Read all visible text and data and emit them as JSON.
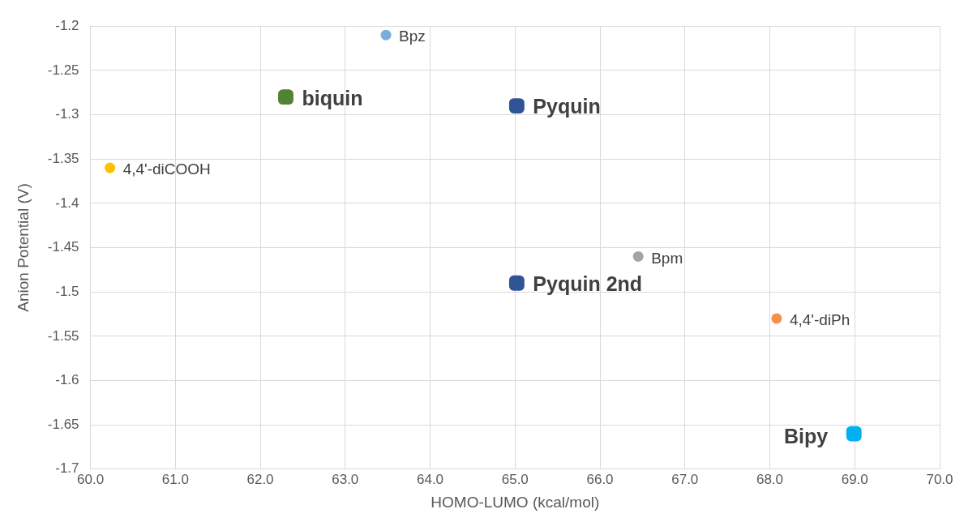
{
  "chart_data": {
    "type": "scatter",
    "xlabel": "HOMO-LUMO (kcal/mol)",
    "ylabel": "Anion Potential (V)",
    "xlim": [
      60,
      70
    ],
    "ylim": [
      -1.7,
      -1.2
    ],
    "xticks": [
      {
        "value": 60,
        "label": "60.0"
      },
      {
        "value": 61,
        "label": "61.0"
      },
      {
        "value": 62,
        "label": "62.0"
      },
      {
        "value": 63,
        "label": "63.0"
      },
      {
        "value": 64,
        "label": "64.0"
      },
      {
        "value": 65,
        "label": "65.0"
      },
      {
        "value": 66,
        "label": "66.0"
      },
      {
        "value": 67,
        "label": "67.0"
      },
      {
        "value": 68,
        "label": "68.0"
      },
      {
        "value": 69,
        "label": "69.0"
      },
      {
        "value": 70,
        "label": "70.0"
      }
    ],
    "yticks": [
      -1.2,
      -1.25,
      -1.3,
      -1.35,
      -1.4,
      -1.45,
      -1.5,
      -1.55,
      -1.6,
      -1.65,
      -1.7
    ],
    "grid": true,
    "legend": false,
    "series": [
      {
        "name": "Bpz",
        "color": "#7aaddc",
        "marker": "circle",
        "x": [
          63.48
        ],
        "values": [
          -1.21
        ]
      },
      {
        "name": "biquin",
        "color": "#548235",
        "marker": "square",
        "x": [
          62.3
        ],
        "values": [
          -1.28
        ]
      },
      {
        "name": "Pyquin",
        "color": "#2f5597",
        "marker": "square",
        "x": [
          65.02
        ],
        "values": [
          -1.29
        ]
      },
      {
        "name": "4,4'-diCOOH",
        "color": "#ffc000",
        "marker": "circle",
        "x": [
          60.23
        ],
        "values": [
          -1.36
        ]
      },
      {
        "name": "Bpm",
        "color": "#a5a5a5",
        "marker": "circle",
        "x": [
          66.45
        ],
        "values": [
          -1.46
        ]
      },
      {
        "name": "Pyquin 2nd",
        "color": "#2f5597",
        "marker": "square",
        "x": [
          65.02
        ],
        "values": [
          -1.49
        ]
      },
      {
        "name": "4,4'-diPh",
        "color": "#f4914b",
        "marker": "circle",
        "x": [
          68.08
        ],
        "values": [
          -1.53
        ]
      },
      {
        "name": "Bipy",
        "color": "#00b0f0",
        "marker": "square",
        "x": [
          68.99
        ],
        "values": [
          -1.66
        ]
      }
    ]
  }
}
